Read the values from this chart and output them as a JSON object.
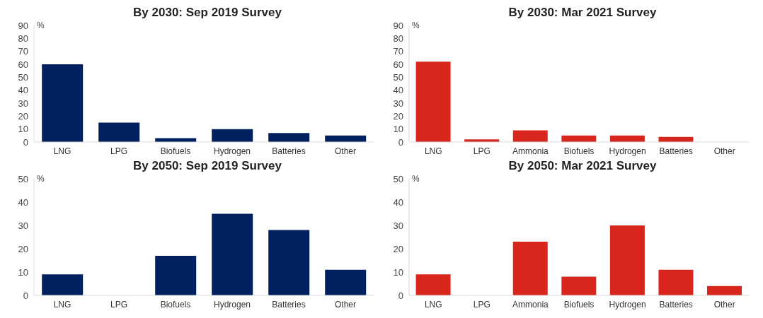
{
  "chart_data": [
    {
      "type": "bar",
      "title": "By 2030: Sep 2019 Survey",
      "ylabel": "%",
      "categories": [
        "LNG",
        "LPG",
        "Biofuels",
        "Hydrogen",
        "Batteries",
        "Other"
      ],
      "values": [
        60,
        15,
        3,
        10,
        7,
        5
      ],
      "color": "#002060",
      "ylim": [
        0,
        90
      ],
      "yticks": [
        0,
        10,
        20,
        30,
        40,
        50,
        60,
        70,
        80,
        90
      ],
      "grid": false
    },
    {
      "type": "bar",
      "title": "By 2030: Mar 2021 Survey",
      "ylabel": "%",
      "categories": [
        "LNG",
        "LPG",
        "Ammonia",
        "Biofuels",
        "Hydrogen",
        "Batteries",
        "Other"
      ],
      "values": [
        62,
        2,
        9,
        5,
        5,
        4,
        0
      ],
      "color": "#d9261c",
      "ylim": [
        0,
        90
      ],
      "yticks": [
        0,
        10,
        20,
        30,
        40,
        50,
        60,
        70,
        80,
        90
      ],
      "grid": false
    },
    {
      "type": "bar",
      "title": "By 2050: Sep 2019 Survey",
      "ylabel": "%",
      "categories": [
        "LNG",
        "LPG",
        "Biofuels",
        "Hydrogen",
        "Batteries",
        "Other"
      ],
      "values": [
        9,
        0,
        17,
        35,
        28,
        11
      ],
      "color": "#002060",
      "ylim": [
        0,
        50
      ],
      "yticks": [
        0,
        10,
        20,
        30,
        40,
        50
      ],
      "grid": false
    },
    {
      "type": "bar",
      "title": "By 2050: Mar 2021 Survey",
      "ylabel": "%",
      "categories": [
        "LNG",
        "LPG",
        "Ammonia",
        "Biofuels",
        "Hydrogen",
        "Batteries",
        "Other"
      ],
      "values": [
        9,
        0,
        23,
        8,
        30,
        11,
        4
      ],
      "color": "#d9261c",
      "ylim": [
        0,
        50
      ],
      "yticks": [
        0,
        10,
        20,
        30,
        40,
        50
      ],
      "grid": false
    }
  ]
}
